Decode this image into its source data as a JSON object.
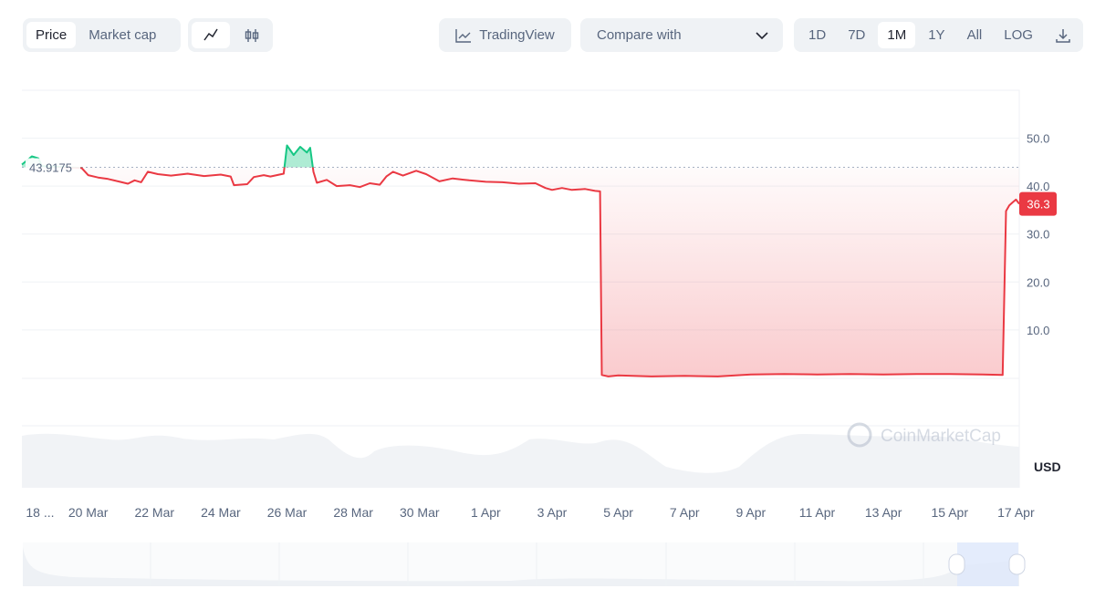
{
  "toolbar": {
    "view_tabs": [
      "Price",
      "Market cap"
    ],
    "trading_view": "TradingView",
    "compare": "Compare with",
    "ranges": [
      "1D",
      "7D",
      "1M",
      "1Y",
      "All"
    ],
    "log": "LOG"
  },
  "chart_data": {
    "type": "line",
    "x": [
      0,
      0.3,
      0.5,
      0.6,
      1.8,
      2,
      2.3,
      2.6,
      2.9,
      3.2,
      3.4,
      3.6,
      3.8,
      4.1,
      4.5,
      5,
      5.5,
      6,
      6.3,
      6.4,
      6.8,
      7,
      7.3,
      7.5,
      7.9,
      8,
      8.2,
      8.4,
      8.6,
      8.7,
      8.8,
      8.9,
      9.2,
      9.5,
      9.9,
      10.2,
      10.5,
      10.8,
      11,
      11.2,
      11.5,
      11.9,
      12.2,
      12.6,
      13,
      13.5,
      14,
      14.5,
      15,
      15.5,
      15.8,
      16,
      16.3,
      16.6,
      17,
      17.3,
      17.45,
      17.5,
      17.7,
      18,
      19,
      20,
      21,
      22,
      23,
      24,
      25,
      26,
      27,
      28,
      29,
      29.6,
      29.7,
      29.8,
      29.9,
      30,
      30.1
    ],
    "values": [
      44.5,
      46.2,
      45.8,
      44.2,
      43.8,
      42.3,
      41.8,
      41.5,
      41,
      40.5,
      41.2,
      40.8,
      43,
      42.5,
      42.2,
      42.6,
      42.1,
      42.4,
      42,
      40.2,
      40.4,
      41.9,
      42.3,
      42,
      42.6,
      48.5,
      46.5,
      48.2,
      47,
      48,
      43,
      40.7,
      41.3,
      40,
      40.2,
      39.8,
      40.6,
      40.3,
      42,
      43,
      42.2,
      43.2,
      42.5,
      41,
      41.6,
      41.2,
      40.9,
      40.8,
      40.5,
      40.6,
      39.6,
      39.2,
      39.6,
      39.2,
      39.4,
      39,
      38.9,
      0.6,
      0.3,
      0.5,
      0.3,
      0.4,
      0.3,
      0.7,
      0.8,
      0.7,
      0.8,
      0.7,
      0.8,
      0.8,
      0.7,
      0.6,
      34.8,
      36,
      36.6,
      37.2,
      36.3
    ],
    "color_up": "#16c784",
    "color_down": "#ea3943",
    "reference": 43.9175,
    "xlim": [
      0,
      30.1
    ],
    "xticks": [
      {
        "value": 0.55,
        "label": "18 ..."
      },
      {
        "value": 2,
        "label": "20 Mar"
      },
      {
        "value": 4,
        "label": "22 Mar"
      },
      {
        "value": 6,
        "label": "24 Mar"
      },
      {
        "value": 8,
        "label": "26 Mar"
      },
      {
        "value": 10,
        "label": "28 Mar"
      },
      {
        "value": 12,
        "label": "30 Mar"
      },
      {
        "value": 14,
        "label": "1 Apr"
      },
      {
        "value": 16,
        "label": "3 Apr"
      },
      {
        "value": 18,
        "label": "5 Apr"
      },
      {
        "value": 20,
        "label": "7 Apr"
      },
      {
        "value": 22,
        "label": "9 Apr"
      },
      {
        "value": 24,
        "label": "11 Apr"
      },
      {
        "value": 26,
        "label": "13 Apr"
      },
      {
        "value": 28,
        "label": "15 Apr"
      },
      {
        "value": 30,
        "label": "17 Apr"
      }
    ],
    "ylim": [
      -10,
      60
    ],
    "yticks": [
      {
        "value": 10,
        "label": "10.0"
      },
      {
        "value": 20,
        "label": "20.0"
      },
      {
        "value": 30,
        "label": "30.0"
      },
      {
        "value": 40,
        "label": "40.0"
      },
      {
        "value": 50,
        "label": "50.0"
      }
    ],
    "grid": true,
    "currency": "USD",
    "watermark": "CoinMarketCap"
  }
}
